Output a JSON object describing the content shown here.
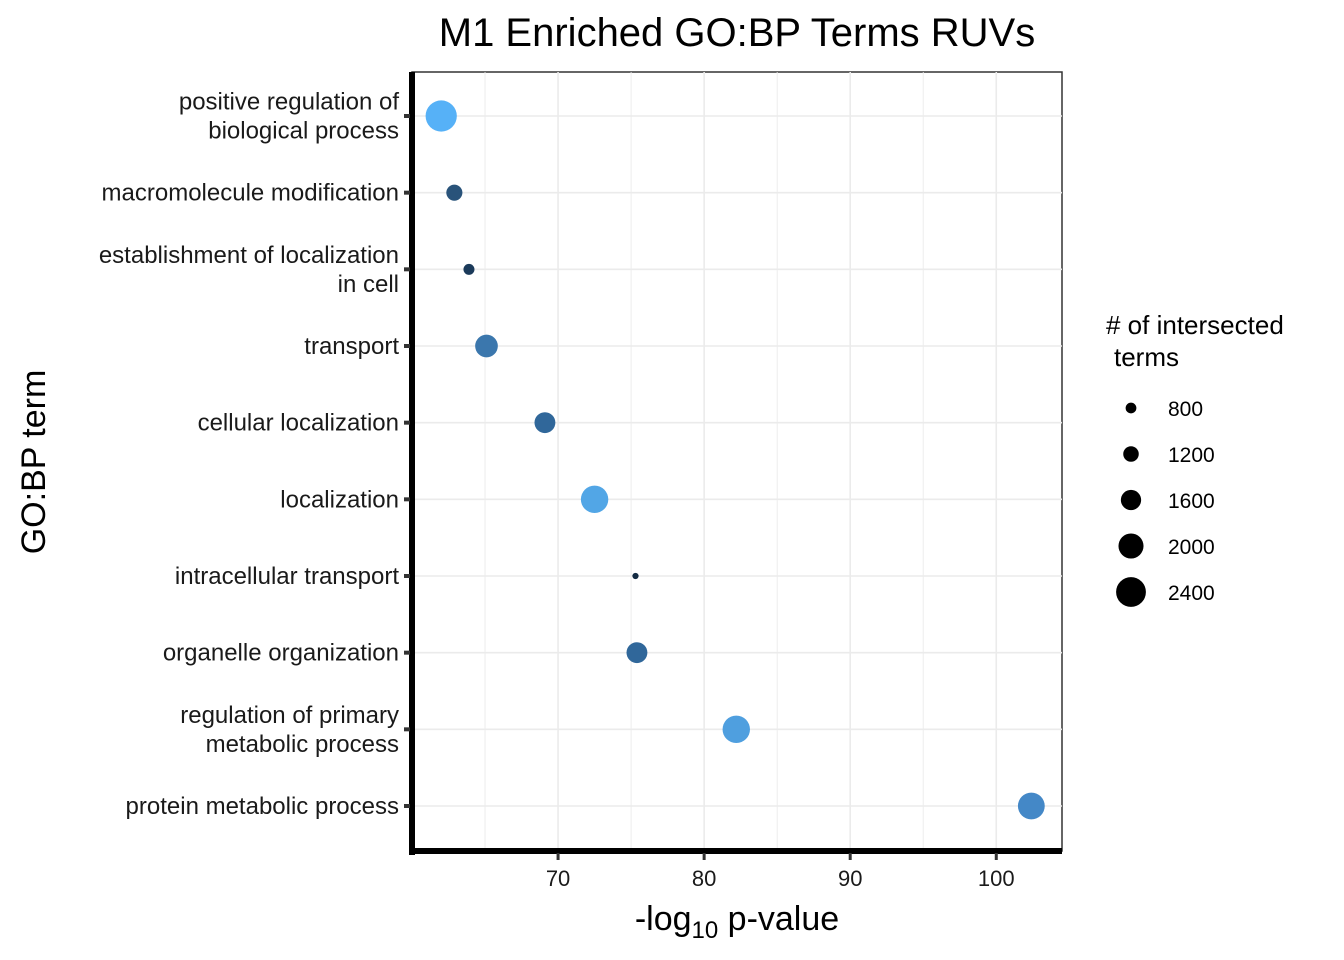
{
  "chart_data": {
    "type": "scatter",
    "title": "M1 Enriched GO:BP Terms RUVs",
    "xlabel_main": "-log",
    "xlabel_sub": "10",
    "xlabel_tail": " p-value",
    "ylabel": "GO:BP term",
    "xlim": [
      60,
      104.5
    ],
    "x_ticks": [
      70,
      80,
      90,
      100
    ],
    "x_tick_labels": [
      "70",
      "80",
      "90",
      "100"
    ],
    "grid": true,
    "legend_position": "right",
    "legend_title_line1": "# of intersected",
    "legend_title_line2": "terms",
    "legend_sizes": [
      800,
      1200,
      1600,
      2000,
      2400
    ],
    "legend_labels": [
      "800",
      "1200",
      "1600",
      "2000",
      "2400"
    ],
    "points": [
      {
        "term_lines": [
          "positive regulation of",
          "biological process"
        ],
        "x": 62.0,
        "size": 2520,
        "color": "#56b1f7"
      },
      {
        "term_lines": [
          "macromolecule modification"
        ],
        "x": 62.9,
        "size": 1250,
        "color": "#29537a"
      },
      {
        "term_lines": [
          "establishment of localization",
          "in cell"
        ],
        "x": 63.9,
        "size": 820,
        "color": "#1b3a5a"
      },
      {
        "term_lines": [
          "transport"
        ],
        "x": 65.1,
        "size": 1800,
        "color": "#3b77ad"
      },
      {
        "term_lines": [
          "cellular localization"
        ],
        "x": 69.1,
        "size": 1650,
        "color": "#30679a"
      },
      {
        "term_lines": [
          "localization"
        ],
        "x": 72.5,
        "size": 2200,
        "color": "#52a6e6"
      },
      {
        "term_lines": [
          "intracellular transport"
        ],
        "x": 75.3,
        "size": 420,
        "color": "#132b43"
      },
      {
        "term_lines": [
          "organelle organization"
        ],
        "x": 75.4,
        "size": 1650,
        "color": "#30679a"
      },
      {
        "term_lines": [
          "regulation of primary",
          "metabolic process"
        ],
        "x": 82.2,
        "size": 2200,
        "color": "#4f9fdf"
      },
      {
        "term_lines": [
          "protein metabolic process"
        ],
        "x": 102.4,
        "size": 2150,
        "color": "#4488c7"
      }
    ]
  }
}
